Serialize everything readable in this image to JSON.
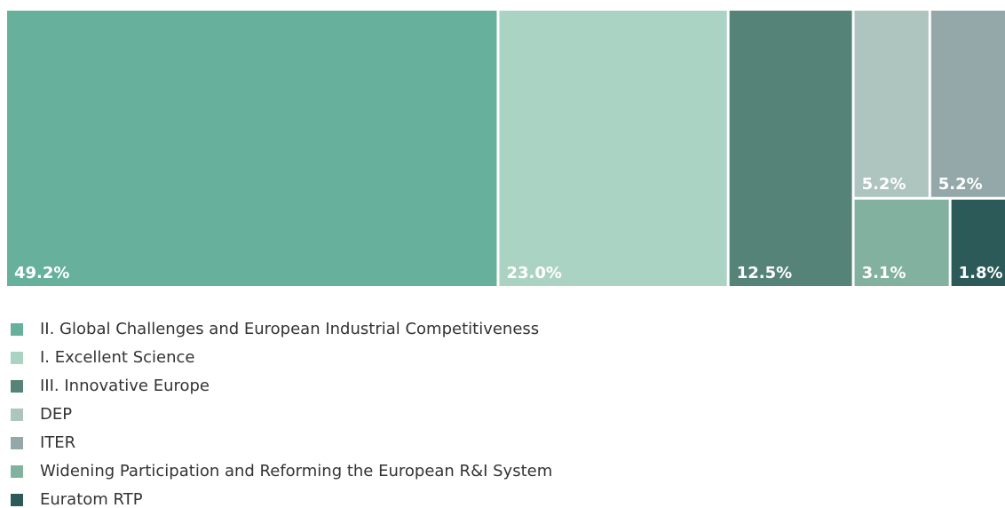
{
  "chart_data": {
    "type": "treemap",
    "categories": [
      "II. Global Challenges and European Industrial Competitiveness",
      "I. Excellent Science",
      "III. Innovative Europe",
      "DEP",
      "ITER",
      "Widening Participation and Reforming the European R&I System",
      "Euratom RTP"
    ],
    "values": [
      49.2,
      23.0,
      12.5,
      5.2,
      5.2,
      3.1,
      1.8
    ],
    "value_labels": [
      "49.2%",
      "23.0%",
      "12.5%",
      "5.2%",
      "5.2%",
      "3.1%",
      "1.8%"
    ],
    "colors": [
      "#67b09b",
      "#abd3c3",
      "#558377",
      "#adc4bf",
      "#95a8a9",
      "#82b1a0",
      "#2c5a59"
    ],
    "legend": "bottom-left"
  }
}
